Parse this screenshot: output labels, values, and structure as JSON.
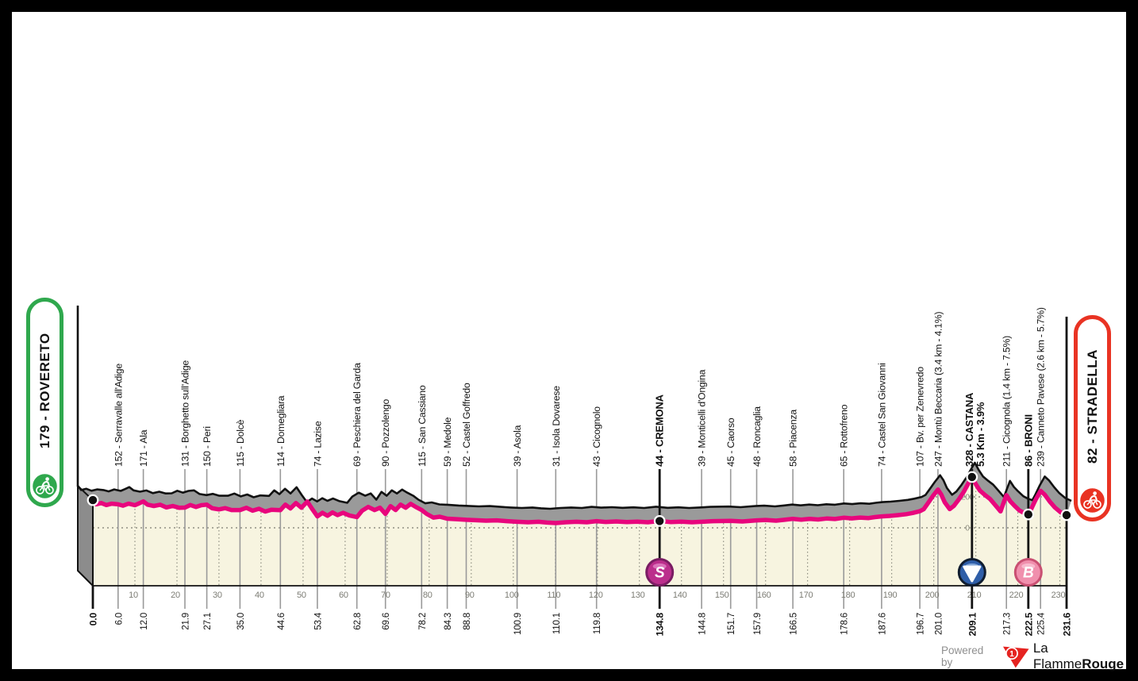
{
  "chart_data": {
    "type": "area",
    "x_axis": {
      "unit": "km",
      "range": [
        0,
        231.6
      ],
      "gridline_step_km": 10,
      "gridline_labels": [
        10,
        20,
        30,
        40,
        50,
        60,
        70,
        80,
        90,
        100,
        110,
        120,
        130,
        140,
        150,
        160,
        170,
        180,
        190,
        200,
        210,
        220,
        230
      ]
    },
    "y_axis": {
      "unit": "m",
      "gridlines": [
        {
          "value": 200,
          "label": "200"
        },
        {
          "value": 0,
          "label": "0"
        }
      ],
      "label_position_km": 208
    },
    "start": {
      "badge_label": "179 - ROVERETO",
      "km": 0.0,
      "elevation": 179,
      "distance_label": "0.0",
      "color": "#2FA84D"
    },
    "finish": {
      "badge_label": "82 - STRADELLA",
      "km": 231.6,
      "elevation": 82,
      "distance_label": "231.6",
      "color": "#E93323"
    },
    "waypoints": [
      {
        "km": 6.0,
        "label": "152 - Serravalle all'Adige",
        "distance_label": "6.0"
      },
      {
        "km": 12.0,
        "label": "171 - Ala",
        "distance_label": "12.0"
      },
      {
        "km": 21.9,
        "label": "131 - Borghetto sull'Adige",
        "distance_label": "21.9"
      },
      {
        "km": 27.1,
        "label": "150 - Peri",
        "distance_label": "27.1"
      },
      {
        "km": 35.0,
        "label": "115 - Dolcè",
        "distance_label": "35.0"
      },
      {
        "km": 44.6,
        "label": "114 - Domegliara",
        "distance_label": "44.6"
      },
      {
        "km": 53.4,
        "label": "74 - Lazise",
        "distance_label": "53.4"
      },
      {
        "km": 62.8,
        "label": "69 - Peschiera del Garda",
        "distance_label": "62.8"
      },
      {
        "km": 69.6,
        "label": "90 - Pozzolengo",
        "distance_label": "69.6"
      },
      {
        "km": 78.2,
        "label": "115 - San Cassiano",
        "distance_label": "78.2"
      },
      {
        "km": 84.3,
        "label": "59 - Medole",
        "distance_label": "84.3"
      },
      {
        "km": 88.8,
        "label": "52 - Castel Goffredo",
        "distance_label": "88.8"
      },
      {
        "km": 100.9,
        "label": "39 - Asola",
        "distance_label": "100.9"
      },
      {
        "km": 110.1,
        "label": "31 - Isola Dovarese",
        "distance_label": "110.1"
      },
      {
        "km": 119.8,
        "label": "43 - Cicognolo",
        "distance_label": "119.8"
      },
      {
        "km": 134.8,
        "label": "44 - CREMONA",
        "distance_label": "134.8",
        "bold": true,
        "marker": "S",
        "dot": true
      },
      {
        "km": 144.8,
        "label": "39 - Monticelli d'Ongina",
        "distance_label": "144.8"
      },
      {
        "km": 151.7,
        "label": "45 - Caorso",
        "distance_label": "151.7"
      },
      {
        "km": 157.9,
        "label": "48 - Roncaglia",
        "distance_label": "157.9"
      },
      {
        "km": 166.5,
        "label": "58 - Piacenza",
        "distance_label": "166.5"
      },
      {
        "km": 178.6,
        "label": "65 - Rottofreno",
        "distance_label": "178.6"
      },
      {
        "km": 187.6,
        "label": "74 - Castel San Giovanni",
        "distance_label": "187.6"
      },
      {
        "km": 196.7,
        "label": "107 - Bv. per Zenevredo",
        "distance_label": "196.7"
      },
      {
        "km": 201.0,
        "label": "247 - Montù Beccaria (3.4 km - 4.1%)",
        "distance_label": "201.0"
      },
      {
        "km": 209.1,
        "label": "328 - CASTANA",
        "label2": "5.3 Km - 3.9%",
        "distance_label": "209.1",
        "bold": true,
        "marker": "4",
        "dot": true
      },
      {
        "km": 217.3,
        "label": "211 - Cicognola (1.4 km - 7.5%)",
        "distance_label": "217.3"
      },
      {
        "km": 222.5,
        "label": "86 - BRONI",
        "distance_label": "222.5",
        "bold": true,
        "marker": "B",
        "dot": true
      },
      {
        "km": 225.4,
        "label": "239 - Canneto Pavese (2.6 km - 5.7%)",
        "distance_label": "225.4"
      }
    ],
    "markers": [
      {
        "symbol": "S",
        "km": 134.8,
        "meaning": "intermediate-sprint",
        "fill": "#BB2E8C",
        "border": "#7A1C63",
        "highlight": "#E07FC2"
      },
      {
        "symbol": "4",
        "km": 209.1,
        "meaning": "category-4-climb",
        "fill": "#2F5EA8",
        "border": "#101D30",
        "highlight": "#8FB2DE",
        "number_color": "#16355F"
      },
      {
        "symbol": "B",
        "km": 222.5,
        "meaning": "bonus-sprint",
        "fill": "#F08FAD",
        "border": "#C94F72",
        "highlight": "#F9C2D3"
      }
    ],
    "profile": [
      [
        0,
        179
      ],
      [
        0.8,
        152
      ],
      [
        2,
        160
      ],
      [
        3.2,
        147
      ],
      [
        4.5,
        156
      ],
      [
        6,
        152
      ],
      [
        7.2,
        143
      ],
      [
        8.5,
        156
      ],
      [
        10,
        146
      ],
      [
        11,
        158
      ],
      [
        12,
        171
      ],
      [
        13,
        150
      ],
      [
        14.5,
        141
      ],
      [
        16,
        149
      ],
      [
        17.5,
        132
      ],
      [
        19,
        141
      ],
      [
        20.5,
        130
      ],
      [
        21.9,
        131
      ],
      [
        23.2,
        147
      ],
      [
        24.5,
        135
      ],
      [
        25.8,
        146
      ],
      [
        27.1,
        150
      ],
      [
        28.4,
        126
      ],
      [
        30,
        119
      ],
      [
        31.5,
        127
      ],
      [
        33,
        115
      ],
      [
        35,
        115
      ],
      [
        36.5,
        129
      ],
      [
        38,
        111
      ],
      [
        39.5,
        123
      ],
      [
        41,
        105
      ],
      [
        42.5,
        117
      ],
      [
        44.6,
        114
      ],
      [
        45.8,
        150
      ],
      [
        47,
        125
      ],
      [
        48.3,
        160
      ],
      [
        49.6,
        130
      ],
      [
        51,
        170
      ],
      [
        52.2,
        120
      ],
      [
        53.4,
        74
      ],
      [
        54.6,
        97
      ],
      [
        55.8,
        78
      ],
      [
        57,
        99
      ],
      [
        58.2,
        82
      ],
      [
        59.5,
        97
      ],
      [
        61,
        80
      ],
      [
        62.8,
        69
      ],
      [
        64,
        110
      ],
      [
        65.5,
        135
      ],
      [
        67,
        115
      ],
      [
        68.3,
        130
      ],
      [
        69.6,
        90
      ],
      [
        70.8,
        140
      ],
      [
        72,
        115
      ],
      [
        73.2,
        150
      ],
      [
        74.4,
        130
      ],
      [
        75.6,
        155
      ],
      [
        76.8,
        135
      ],
      [
        78.2,
        115
      ],
      [
        79.4,
        90
      ],
      [
        81,
        66
      ],
      [
        82.5,
        72
      ],
      [
        84.3,
        59
      ],
      [
        86.5,
        56
      ],
      [
        88.8,
        52
      ],
      [
        91,
        49
      ],
      [
        93.5,
        46
      ],
      [
        96,
        48
      ],
      [
        98.5,
        43
      ],
      [
        100.9,
        39
      ],
      [
        103.5,
        36
      ],
      [
        106,
        39
      ],
      [
        108,
        34
      ],
      [
        110.1,
        31
      ],
      [
        112.5,
        36
      ],
      [
        115,
        39
      ],
      [
        117.5,
        36
      ],
      [
        119.8,
        43
      ],
      [
        122,
        38
      ],
      [
        124.5,
        41
      ],
      [
        127,
        37
      ],
      [
        129.5,
        40
      ],
      [
        132,
        36
      ],
      [
        134.8,
        44
      ],
      [
        137.5,
        37
      ],
      [
        140,
        40
      ],
      [
        142.5,
        36
      ],
      [
        144.8,
        39
      ],
      [
        147.5,
        43
      ],
      [
        151.7,
        45
      ],
      [
        154.5,
        41
      ],
      [
        157.9,
        48
      ],
      [
        160,
        51
      ],
      [
        162.5,
        46
      ],
      [
        164.5,
        52
      ],
      [
        166.5,
        58
      ],
      [
        168.5,
        53
      ],
      [
        170.5,
        58
      ],
      [
        172.5,
        54
      ],
      [
        174.5,
        60
      ],
      [
        176.5,
        57
      ],
      [
        178.6,
        65
      ],
      [
        180.5,
        61
      ],
      [
        182.5,
        66
      ],
      [
        184.5,
        63
      ],
      [
        186,
        69
      ],
      [
        187.6,
        74
      ],
      [
        189.5,
        77
      ],
      [
        191.5,
        82
      ],
      [
        193.5,
        88
      ],
      [
        195,
        96
      ],
      [
        196.7,
        107
      ],
      [
        197.6,
        120
      ],
      [
        198.6,
        158
      ],
      [
        199.8,
        205
      ],
      [
        201,
        247
      ],
      [
        201.8,
        215
      ],
      [
        202.6,
        165
      ],
      [
        203.8,
        121
      ],
      [
        204.8,
        142
      ],
      [
        206,
        185
      ],
      [
        207.2,
        235
      ],
      [
        208.2,
        285
      ],
      [
        209.1,
        328
      ],
      [
        210,
        282
      ],
      [
        211,
        240
      ],
      [
        212.2,
        212
      ],
      [
        213.4,
        186
      ],
      [
        214.6,
        148
      ],
      [
        215.9,
        106
      ],
      [
        216.6,
        160
      ],
      [
        217.3,
        211
      ],
      [
        218.2,
        172
      ],
      [
        219.2,
        143
      ],
      [
        220.4,
        112
      ],
      [
        221.5,
        96
      ],
      [
        222.5,
        86
      ],
      [
        223.2,
        122
      ],
      [
        224.2,
        180
      ],
      [
        225.4,
        239
      ],
      [
        226.4,
        214
      ],
      [
        227.6,
        170
      ],
      [
        228.8,
        132
      ],
      [
        230.2,
        100
      ],
      [
        231.6,
        82
      ]
    ]
  },
  "colors": {
    "route_line": "#E8067D",
    "terrain_front": "#F7F4E0",
    "terrain_top": "#9A9A9A",
    "terrain_side": "#8C8C8C",
    "skyline": "#111111",
    "tick": "#9a9a9a",
    "grid_dot": "#8f8f82"
  },
  "footer": {
    "powered_by": "Powered by",
    "brand_regular": "La Flamme",
    "brand_bold": "Rouge",
    "logo_glyph": "1"
  }
}
